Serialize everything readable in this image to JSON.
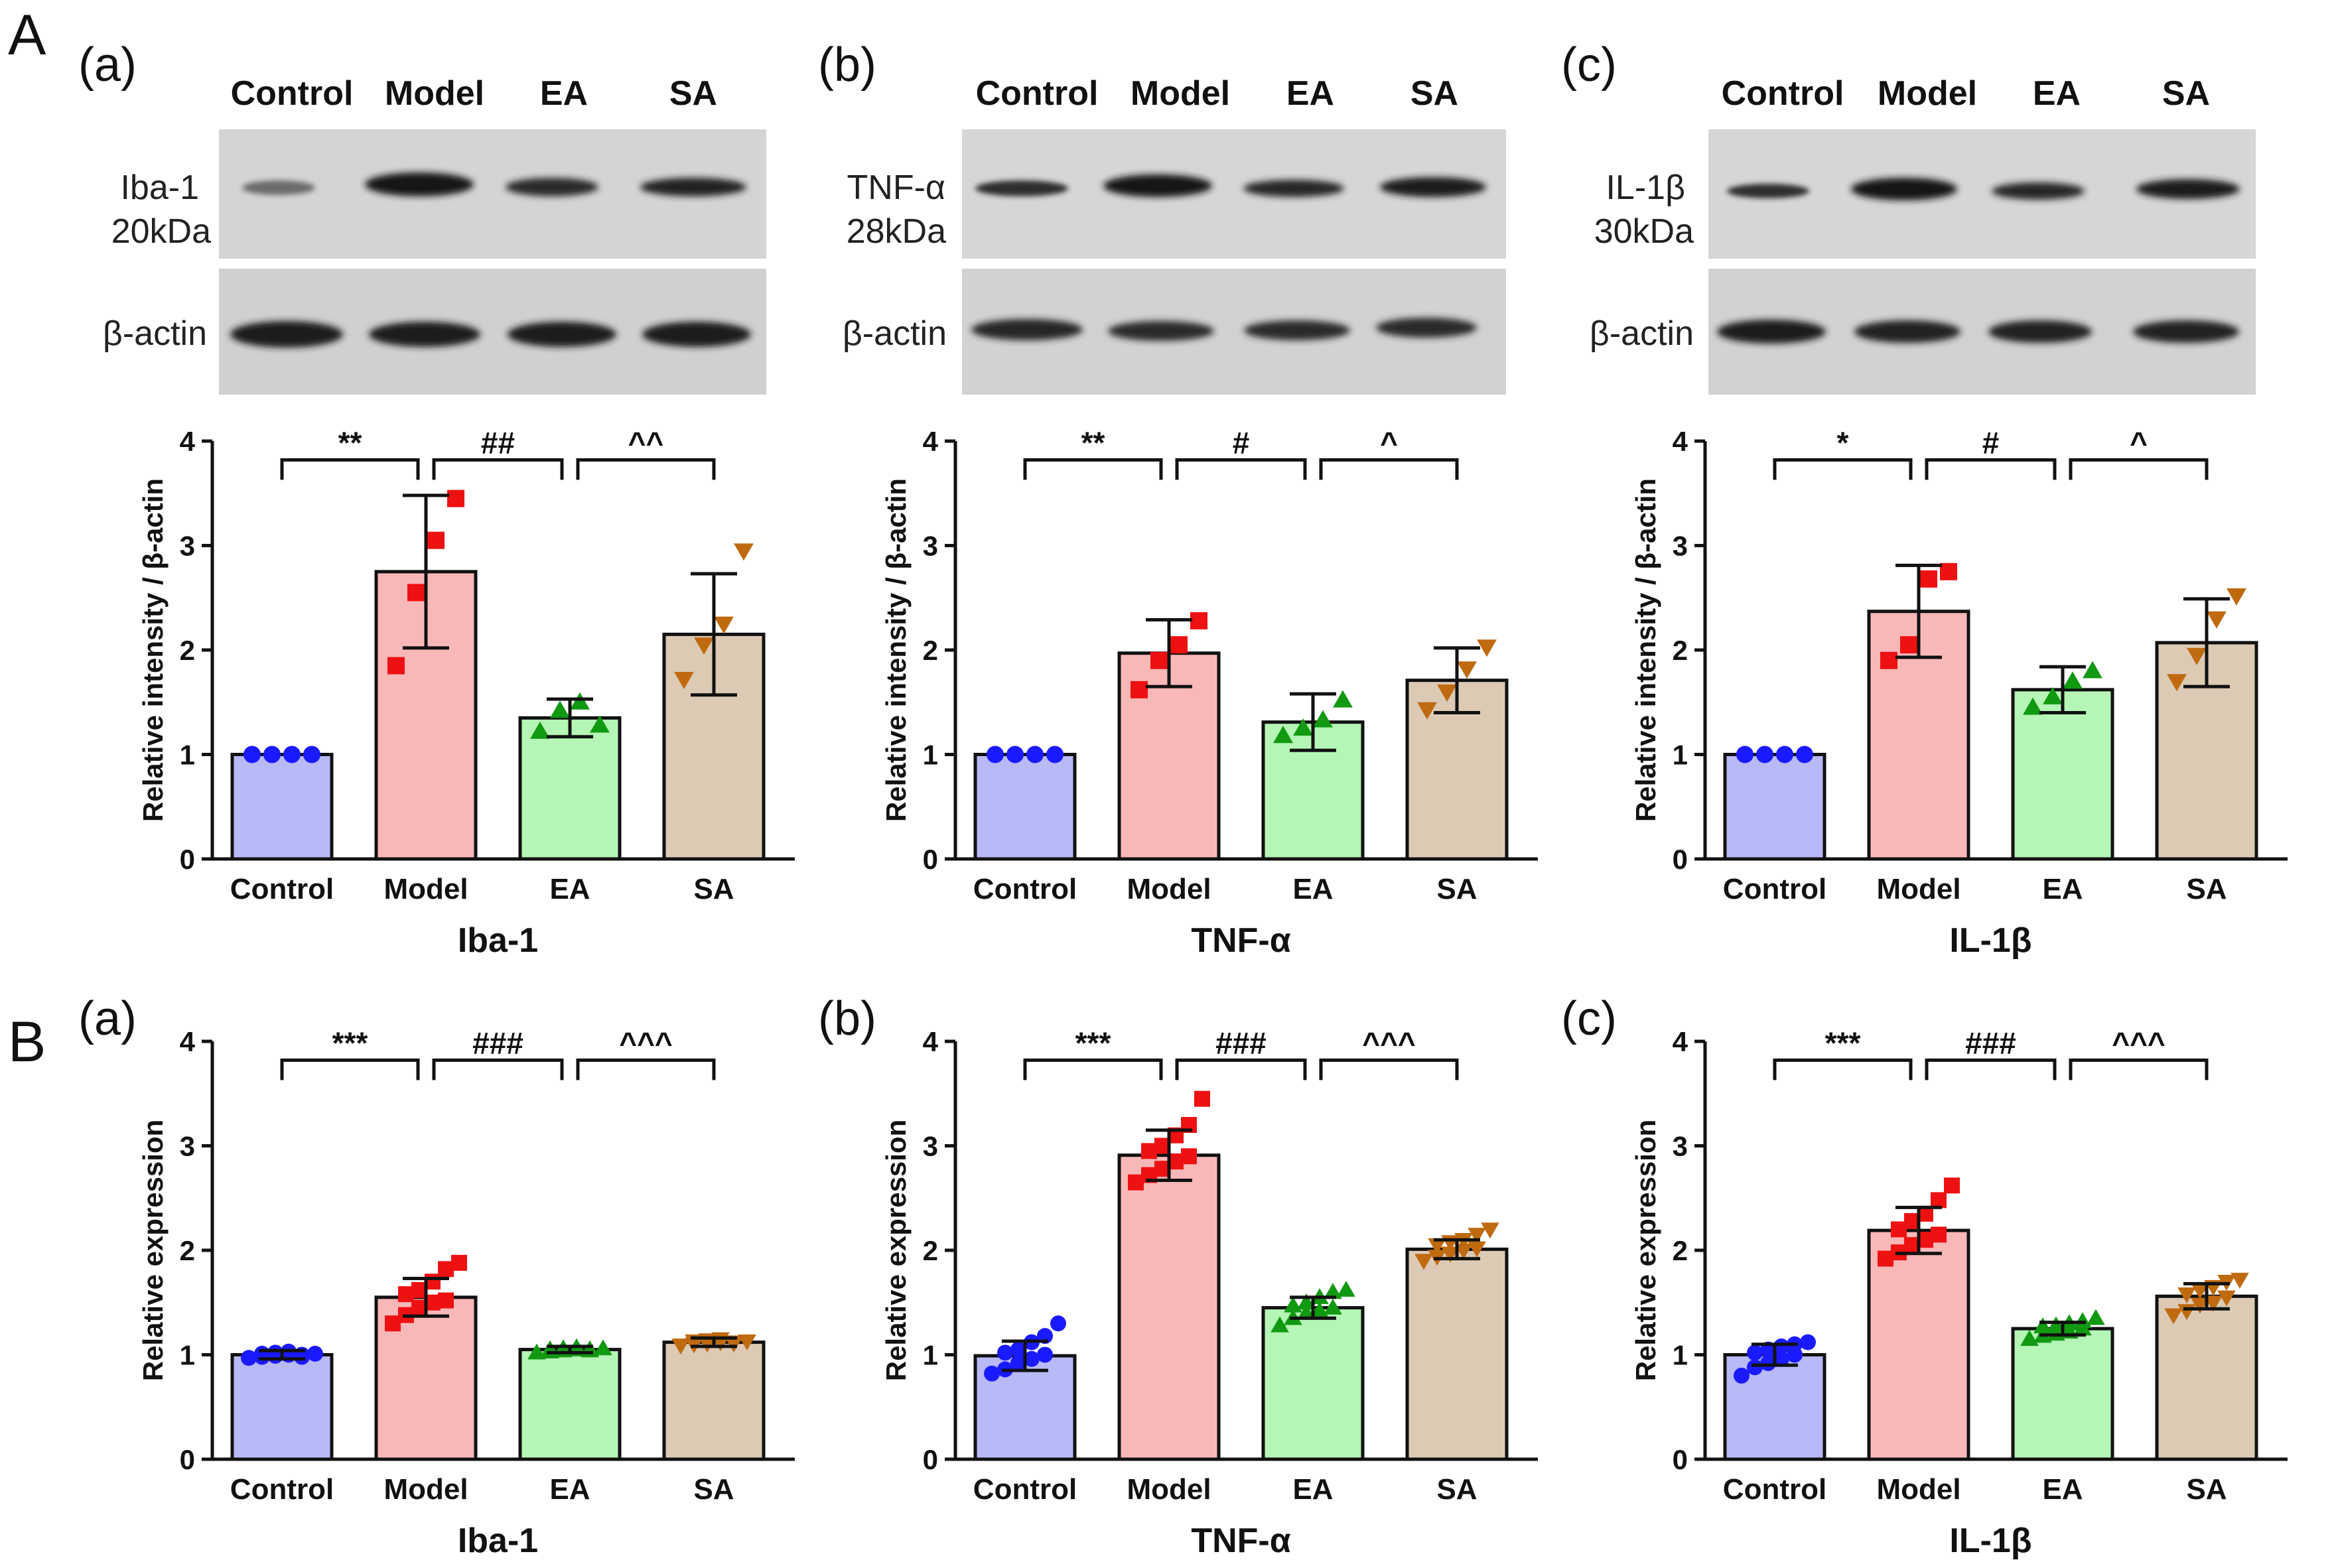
{
  "figure": {
    "panel_A_letter": "A",
    "panel_B_letter": "B"
  },
  "western_blots": [
    {
      "sub": "(a)",
      "lanes": [
        "Control",
        "Model",
        "EA",
        "SA"
      ],
      "protein": "Iba-1",
      "kda": "20kDa",
      "loading": "β-actin"
    },
    {
      "sub": "(b)",
      "lanes": [
        "Control",
        "Model",
        "EA",
        "SA"
      ],
      "protein": "TNF-α",
      "kda": "28kDa",
      "loading": "β-actin"
    },
    {
      "sub": "(c)",
      "lanes": [
        "Control",
        "Model",
        "EA",
        "SA"
      ],
      "protein": "IL-1β",
      "kda": "30kDa",
      "loading": "β-actin"
    }
  ],
  "chart_data": [
    {
      "id": "A-a",
      "type": "bar",
      "title": "Iba-1",
      "ylabel": "Relative intensity / β-actin",
      "xlabel": "Iba-1",
      "ylim": [
        0,
        4
      ],
      "yticks": [
        0,
        1,
        2,
        3,
        4
      ],
      "categories": [
        "Control",
        "Model",
        "EA",
        "SA"
      ],
      "values": [
        1.0,
        2.75,
        1.35,
        2.15
      ],
      "errors": [
        0.0,
        0.73,
        0.18,
        0.58
      ],
      "points": [
        [
          1.0,
          1.0,
          1.0,
          1.0
        ],
        [
          1.85,
          2.55,
          3.05,
          3.45
        ],
        [
          1.22,
          1.42,
          1.5,
          1.28
        ],
        [
          1.72,
          2.05,
          2.25,
          2.95
        ]
      ],
      "significance": [
        [
          "**",
          0,
          1
        ],
        [
          "##",
          1,
          2
        ],
        [
          "^^",
          2,
          3
        ]
      ]
    },
    {
      "id": "A-b",
      "type": "bar",
      "title": "TNF-α",
      "ylabel": "Relative intensity / β-actin",
      "xlabel": "TNF-α",
      "ylim": [
        0,
        4
      ],
      "yticks": [
        0,
        1,
        2,
        3,
        4
      ],
      "categories": [
        "Control",
        "Model",
        "EA",
        "SA"
      ],
      "values": [
        1.0,
        1.97,
        1.31,
        1.71
      ],
      "errors": [
        0.0,
        0.32,
        0.27,
        0.31
      ],
      "points": [
        [
          1.0,
          1.0,
          1.0,
          1.0
        ],
        [
          1.62,
          1.9,
          2.05,
          2.28
        ],
        [
          1.18,
          1.25,
          1.33,
          1.52
        ],
        [
          1.43,
          1.6,
          1.82,
          2.03
        ]
      ],
      "significance": [
        [
          "**",
          0,
          1
        ],
        [
          "#",
          1,
          2
        ],
        [
          "^",
          2,
          3
        ]
      ]
    },
    {
      "id": "A-c",
      "type": "bar",
      "title": "IL-1β",
      "ylabel": "Relative intensity / β-actin",
      "xlabel": "IL-1β",
      "ylim": [
        0,
        4
      ],
      "yticks": [
        0,
        1,
        2,
        3,
        4
      ],
      "categories": [
        "Control",
        "Model",
        "EA",
        "SA"
      ],
      "values": [
        1.0,
        2.37,
        1.62,
        2.07
      ],
      "errors": [
        0.0,
        0.44,
        0.22,
        0.42
      ],
      "points": [
        [
          1.0,
          1.0,
          1.0,
          1.0
        ],
        [
          1.9,
          2.05,
          2.68,
          2.75
        ],
        [
          1.45,
          1.55,
          1.7,
          1.8
        ],
        [
          1.7,
          1.95,
          2.3,
          2.52
        ]
      ],
      "significance": [
        [
          "*",
          0,
          1
        ],
        [
          "#",
          1,
          2
        ],
        [
          "^",
          2,
          3
        ]
      ]
    },
    {
      "id": "B-a",
      "type": "bar",
      "title": "Iba-1",
      "ylabel": "Relative expression",
      "xlabel": "Iba-1",
      "ylim": [
        0,
        4
      ],
      "yticks": [
        0,
        1,
        2,
        3,
        4
      ],
      "categories": [
        "Control",
        "Model",
        "EA",
        "SA"
      ],
      "values": [
        1.0,
        1.55,
        1.05,
        1.12
      ],
      "errors": [
        0.04,
        0.18,
        0.03,
        0.04
      ],
      "points": [
        [
          0.97,
          0.98,
          0.99,
          1.0,
          1.0,
          1.01,
          1.02,
          1.03,
          0.98,
          1.01
        ],
        [
          1.3,
          1.38,
          1.45,
          1.5,
          1.52,
          1.58,
          1.62,
          1.7,
          1.82,
          1.88
        ],
        [
          1.02,
          1.03,
          1.04,
          1.05,
          1.05,
          1.05,
          1.06,
          1.07,
          1.04,
          1.06
        ],
        [
          1.09,
          1.1,
          1.11,
          1.12,
          1.12,
          1.13,
          1.14,
          1.15,
          1.11,
          1.13
        ]
      ],
      "significance": [
        [
          "***",
          0,
          1
        ],
        [
          "###",
          1,
          2
        ],
        [
          "^^^",
          2,
          3
        ]
      ]
    },
    {
      "id": "B-b",
      "type": "bar",
      "title": "TNF-α",
      "ylabel": "Relative expression",
      "xlabel": "TNF-α",
      "ylim": [
        0,
        4
      ],
      "yticks": [
        0,
        1,
        2,
        3,
        4
      ],
      "categories": [
        "Control",
        "Model",
        "EA",
        "SA"
      ],
      "values": [
        0.99,
        2.91,
        1.45,
        2.01
      ],
      "errors": [
        0.14,
        0.24,
        0.1,
        0.09
      ],
      "points": [
        [
          0.82,
          0.86,
          0.92,
          0.96,
          1.0,
          1.02,
          1.05,
          1.12,
          1.18,
          1.3
        ],
        [
          2.65,
          2.72,
          2.78,
          2.85,
          2.9,
          2.95,
          3.0,
          3.1,
          3.2,
          3.45
        ],
        [
          1.28,
          1.35,
          1.4,
          1.42,
          1.45,
          1.47,
          1.5,
          1.55,
          1.6,
          1.62
        ],
        [
          1.9,
          1.94,
          1.97,
          2.0,
          2.02,
          2.05,
          2.08,
          2.1,
          2.15,
          2.2
        ]
      ],
      "significance": [
        [
          "***",
          0,
          1
        ],
        [
          "###",
          1,
          2
        ],
        [
          "^^^",
          2,
          3
        ]
      ]
    },
    {
      "id": "B-c",
      "type": "bar",
      "title": "IL-1β",
      "ylabel": "Relative expression",
      "xlabel": "IL-1β",
      "ylim": [
        0,
        4
      ],
      "yticks": [
        0,
        1,
        2,
        3,
        4
      ],
      "categories": [
        "Control",
        "Model",
        "EA",
        "SA"
      ],
      "values": [
        1.0,
        2.19,
        1.25,
        1.56
      ],
      "errors": [
        0.1,
        0.22,
        0.06,
        0.12
      ],
      "points": [
        [
          0.8,
          0.88,
          0.92,
          0.96,
          1.0,
          1.02,
          1.05,
          1.08,
          1.1,
          1.12
        ],
        [
          1.92,
          1.98,
          2.05,
          2.1,
          2.15,
          2.2,
          2.28,
          2.35,
          2.48,
          2.62
        ],
        [
          1.15,
          1.18,
          1.2,
          1.22,
          1.25,
          1.27,
          1.28,
          1.3,
          1.32,
          1.35
        ],
        [
          1.38,
          1.42,
          1.48,
          1.5,
          1.55,
          1.58,
          1.62,
          1.65,
          1.7,
          1.72
        ]
      ],
      "significance": [
        [
          "***",
          0,
          1
        ],
        [
          "###",
          1,
          2
        ],
        [
          "^^^",
          2,
          3
        ]
      ]
    }
  ],
  "colors": {
    "fills": [
      "#b8b9f7",
      "#f9b8b8",
      "#b5f5b5",
      "#dccab5"
    ],
    "markers": [
      "#1a1aff",
      "#ee1111",
      "#119911",
      "#c06a10"
    ],
    "marker_shapes": [
      "circle",
      "square",
      "triangle-up",
      "triangle-down"
    ]
  }
}
